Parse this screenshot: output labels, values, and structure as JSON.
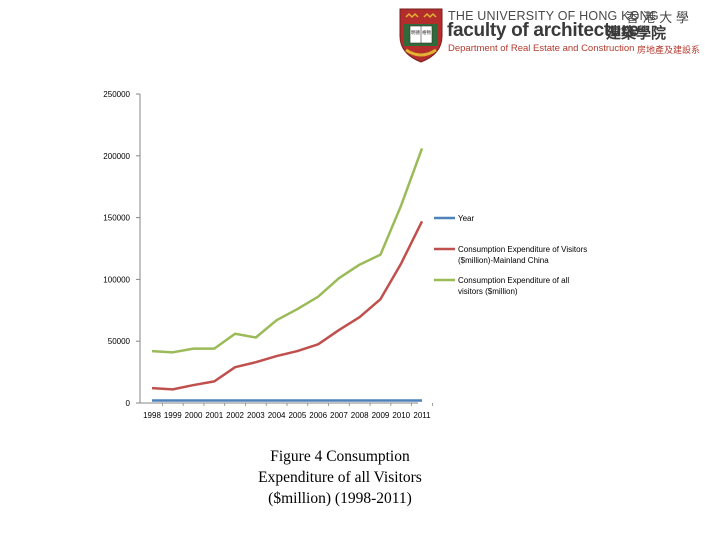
{
  "header": {
    "university": "THE UNIVERSITY OF HONG KONG",
    "university_zh": "香 港 大 學",
    "faculty": "faculty of architecture",
    "faculty_zh": "建築學院",
    "department": "Department of Real Estate and Construction",
    "department_zh": "房地產及建設系",
    "crest_book_text": "明 德 格 物"
  },
  "colors": {
    "year": "#4f81bd",
    "mainland": "#c0504d",
    "all": "#9bbb59",
    "crest_red": "#b32d2d",
    "crest_gold": "#e2b233"
  },
  "chart_data": {
    "type": "line",
    "x": [
      "1998",
      "1999",
      "2000",
      "2001",
      "2002",
      "2003",
      "2004",
      "2005",
      "2006",
      "2007",
      "2008",
      "2009",
      "2010",
      "2011"
    ],
    "ylim": [
      0,
      250000
    ],
    "yticks": [
      "250000",
      "200000",
      "150000",
      "100000",
      "50000",
      "0"
    ],
    "ytick_values": [
      250000,
      200000,
      150000,
      100000,
      50000,
      0
    ],
    "grid": false,
    "legend_position": "right",
    "series": [
      {
        "name": "Year",
        "color_key": "year",
        "values": [
          1998,
          1999,
          2000,
          2001,
          2002,
          2003,
          2004,
          2005,
          2006,
          2007,
          2008,
          2009,
          2010,
          2011
        ]
      },
      {
        "name": "Consumption Expenditure of Visitors ($million)-Mainland China",
        "color_key": "mainland",
        "legend_lines": [
          "Consumption Expenditure of  Visitors",
          "($million)-Mainland China"
        ],
        "values": [
          12000,
          11000,
          14500,
          17500,
          29000,
          33000,
          38000,
          42000,
          47500,
          59000,
          69500,
          84000,
          113000,
          147000
        ]
      },
      {
        "name": "Consumption Expenditure of all visitors ($million)",
        "color_key": "all",
        "legend_lines": [
          "Consumption Expenditure of  all",
          "visitors ($million)"
        ],
        "values": [
          42000,
          41000,
          44000,
          44000,
          56000,
          53000,
          67000,
          76000,
          86000,
          101000,
          112000,
          120000,
          160000,
          206000
        ]
      }
    ]
  },
  "caption": {
    "line1": "Figure 4 Consumption",
    "line2": "Expenditure of  all Visitors",
    "line3": "($million) (1998-2011)"
  }
}
